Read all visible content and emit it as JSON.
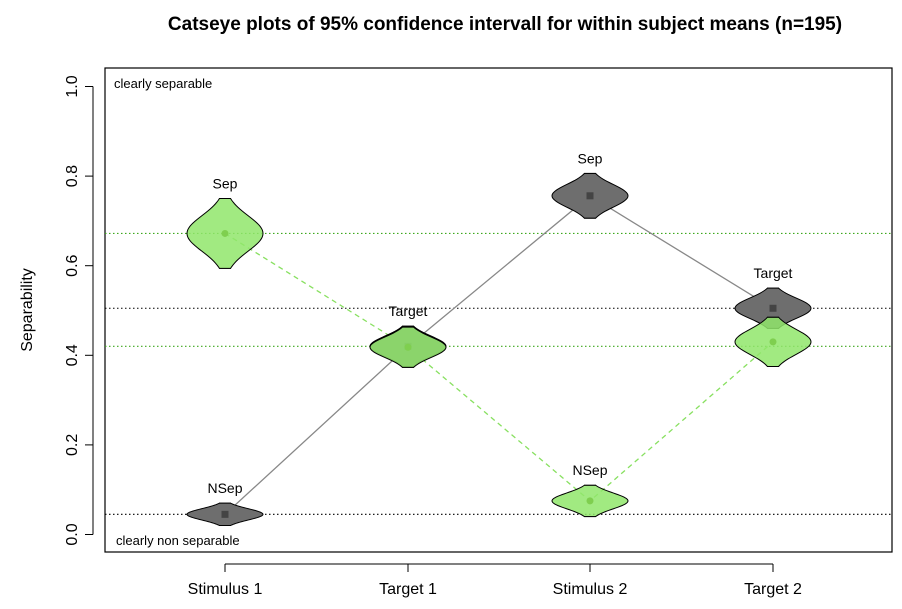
{
  "chart_data": {
    "type": "catseye",
    "title": "Catseye plots of 95% confidence intervall for within subject means (n=195)",
    "xlabel": "",
    "ylabel": "Separability",
    "ylim": [
      0,
      1
    ],
    "yticks": [
      "0.0",
      "0.2",
      "0.4",
      "0.6",
      "0.8",
      "1.0"
    ],
    "categories": [
      "Stimulus 1",
      "Target 1",
      "Stimulus 2",
      "Target 2"
    ],
    "annotations": {
      "top_left": "clearly separable",
      "bottom_left": "clearly non separable"
    },
    "reference_lines": [
      {
        "y": 0.672,
        "color": "#3fa81f",
        "style": "dotted"
      },
      {
        "y": 0.42,
        "color": "#3fa81f",
        "style": "dotted"
      },
      {
        "y": 0.505,
        "color": "#000000",
        "style": "dotted"
      },
      {
        "y": 0.045,
        "color": "#000000",
        "style": "dotted"
      }
    ],
    "series": [
      {
        "color": "#666666",
        "fill": "#6e6e6e",
        "line_color": "#888888",
        "line_style": "solid",
        "points": [
          {
            "category": "Stimulus 1",
            "y": 0.045,
            "ci_half": 0.025,
            "label": "NSep"
          },
          {
            "category": "Target 1",
            "y": 0.42,
            "ci_half": 0.045,
            "label": "Target"
          },
          {
            "category": "Stimulus 2",
            "y": 0.756,
            "ci_half": 0.05,
            "label": "Sep"
          },
          {
            "category": "Target 2",
            "y": 0.505,
            "ci_half": 0.045,
            "label": "Target"
          }
        ]
      },
      {
        "color": "#7ed957",
        "fill": "#90e66b",
        "line_color": "#88e060",
        "line_style": "dashed",
        "points": [
          {
            "category": "Stimulus 1",
            "y": 0.672,
            "ci_half": 0.078,
            "label": "Sep"
          },
          {
            "category": "Target 1",
            "y": 0.418,
            "ci_half": 0.045,
            "label": ""
          },
          {
            "category": "Stimulus 2",
            "y": 0.075,
            "ci_half": 0.035,
            "label": "NSep"
          },
          {
            "category": "Target 2",
            "y": 0.43,
            "ci_half": 0.055,
            "label": ""
          }
        ]
      }
    ],
    "grid": false,
    "legend": "none"
  }
}
